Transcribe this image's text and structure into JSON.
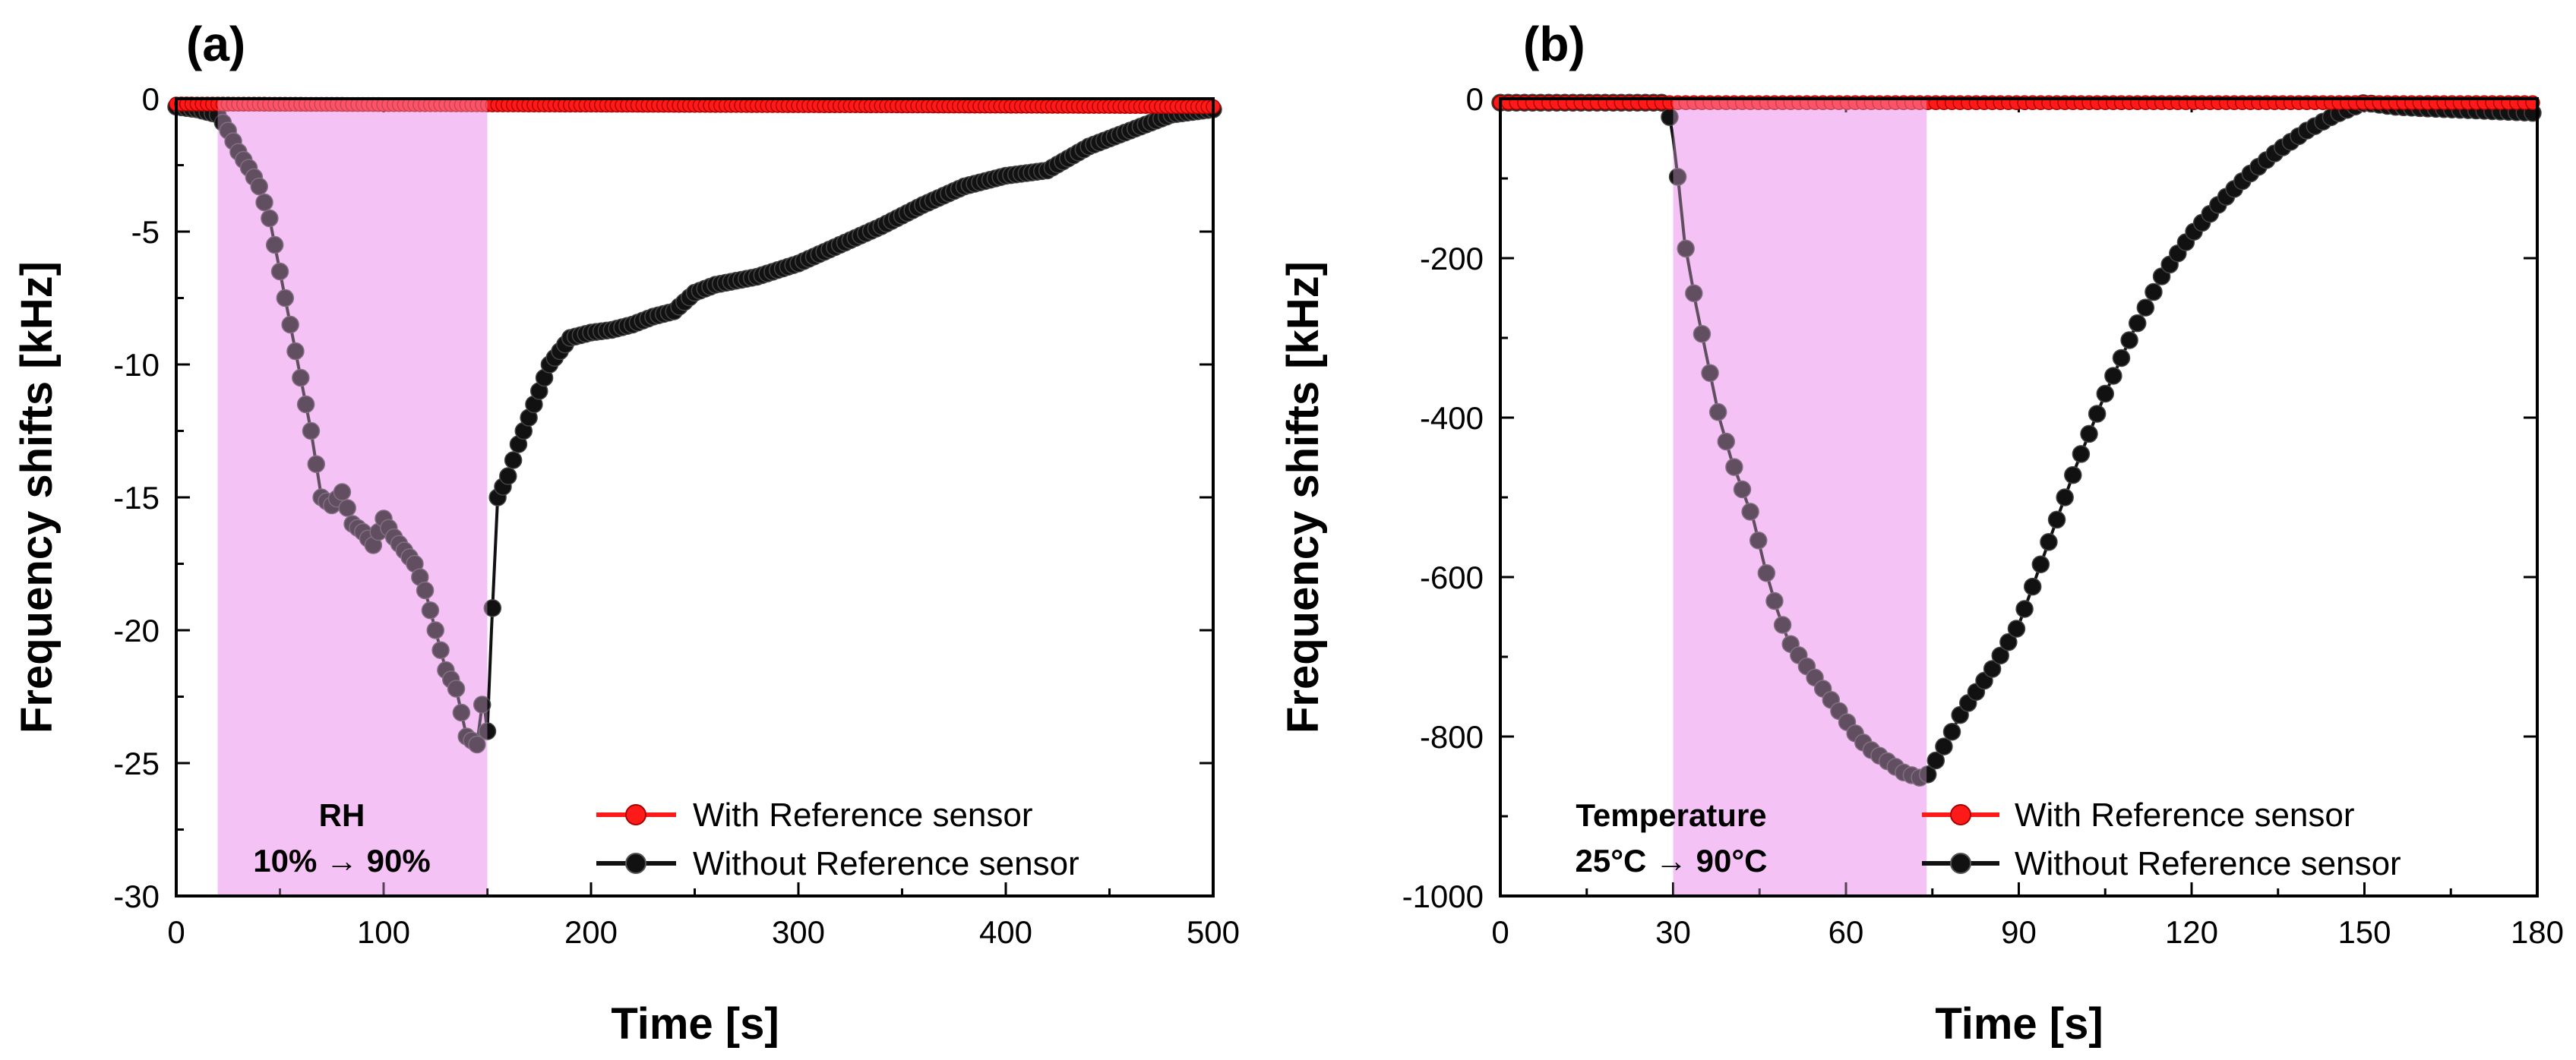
{
  "colors": {
    "with_reference": "#ff1a1a",
    "without_reference": "#111111",
    "shade": "#f5c2f5"
  },
  "chart_data": [
    {
      "type": "line",
      "panel_label": "(a)",
      "xlabel": "Time [s]",
      "ylabel": "Frequency shifts [kHz]",
      "xlim": [
        0,
        500
      ],
      "ylim": [
        -30,
        0
      ],
      "x_ticks": [
        0,
        100,
        200,
        300,
        400,
        500
      ],
      "y_ticks": [
        0,
        -5,
        -10,
        -15,
        -20,
        -25,
        -30
      ],
      "shaded_region": {
        "x_start": 20,
        "x_end": 150,
        "label_line1": "RH",
        "label_line2": "10% → 90%"
      },
      "legend": {
        "position": "bottom-right",
        "entries": [
          "With Reference sensor",
          "Without Reference sensor"
        ]
      },
      "series": [
        {
          "name": "With Reference sensor",
          "x": [
            0,
            500
          ],
          "y": [
            -0.2,
            -0.3
          ]
        },
        {
          "name": "Without Reference sensor",
          "x": [
            0,
            10,
            20,
            25,
            30,
            35,
            40,
            45,
            50,
            55,
            60,
            65,
            70,
            75,
            80,
            85,
            90,
            95,
            100,
            105,
            110,
            115,
            120,
            125,
            130,
            135,
            140,
            145,
            148,
            150,
            152,
            155,
            160,
            165,
            170,
            175,
            180,
            190,
            200,
            210,
            220,
            230,
            240,
            250,
            260,
            280,
            300,
            320,
            340,
            360,
            380,
            400,
            420,
            440,
            460,
            470,
            480,
            490,
            500
          ],
          "y": [
            -0.3,
            -0.4,
            -0.6,
            -1.2,
            -2.0,
            -2.6,
            -3.3,
            -4.5,
            -6.5,
            -8.5,
            -10.5,
            -12.5,
            -15.0,
            -15.3,
            -14.8,
            -16.0,
            -16.3,
            -16.8,
            -15.8,
            -16.5,
            -17.0,
            -17.5,
            -18.5,
            -20.0,
            -21.5,
            -22.2,
            -24.0,
            -24.3,
            -22.5,
            -23.8,
            -20.0,
            -15.0,
            -14.2,
            -13.0,
            -12.0,
            -11.0,
            -10.0,
            -9.0,
            -8.8,
            -8.7,
            -8.5,
            -8.2,
            -8.0,
            -7.3,
            -7.0,
            -6.7,
            -6.2,
            -5.5,
            -4.8,
            -4.0,
            -3.3,
            -2.9,
            -2.7,
            -1.8,
            -1.2,
            -0.9,
            -0.6,
            -0.5,
            -0.4
          ]
        }
      ]
    },
    {
      "type": "line",
      "panel_label": "(b)",
      "xlabel": "Time [s]",
      "ylabel": "Frequency shifts [kHz]",
      "xlim": [
        0,
        180
      ],
      "ylim": [
        -1000,
        0
      ],
      "x_ticks": [
        0,
        30,
        60,
        90,
        120,
        150,
        180
      ],
      "y_ticks": [
        0,
        -200,
        -400,
        -600,
        -800,
        -1000
      ],
      "shaded_region": {
        "x_start": 30,
        "x_end": 74,
        "label_line1": "Temperature",
        "label_line2": "25°C → 90°C"
      },
      "legend": {
        "position": "bottom-right",
        "entries": [
          "With Reference sensor",
          "Without Reference sensor"
        ]
      },
      "series": [
        {
          "name": "With Reference sensor",
          "x": [
            0,
            180
          ],
          "y": [
            -5,
            -5
          ]
        },
        {
          "name": "Without Reference sensor",
          "x": [
            0,
            29,
            30,
            31,
            32,
            34,
            36,
            38,
            40,
            42,
            44,
            46,
            48,
            50,
            52,
            54,
            56,
            58,
            60,
            62,
            64,
            66,
            68,
            70,
            72,
            73,
            74,
            76,
            78,
            80,
            85,
            90,
            95,
            100,
            105,
            110,
            115,
            120,
            125,
            130,
            135,
            140,
            145,
            150,
            155,
            160,
            170,
            180
          ],
          "y": [
            -5,
            -5,
            -50,
            -110,
            -180,
            -260,
            -330,
            -400,
            -450,
            -490,
            -530,
            -590,
            -640,
            -680,
            -700,
            -720,
            -740,
            -760,
            -780,
            -800,
            -815,
            -825,
            -835,
            -845,
            -850,
            -852,
            -850,
            -825,
            -800,
            -770,
            -720,
            -660,
            -560,
            -460,
            -370,
            -290,
            -220,
            -170,
            -130,
            -95,
            -65,
            -40,
            -20,
            -5,
            -10,
            -12,
            -15,
            -18
          ]
        }
      ]
    }
  ]
}
